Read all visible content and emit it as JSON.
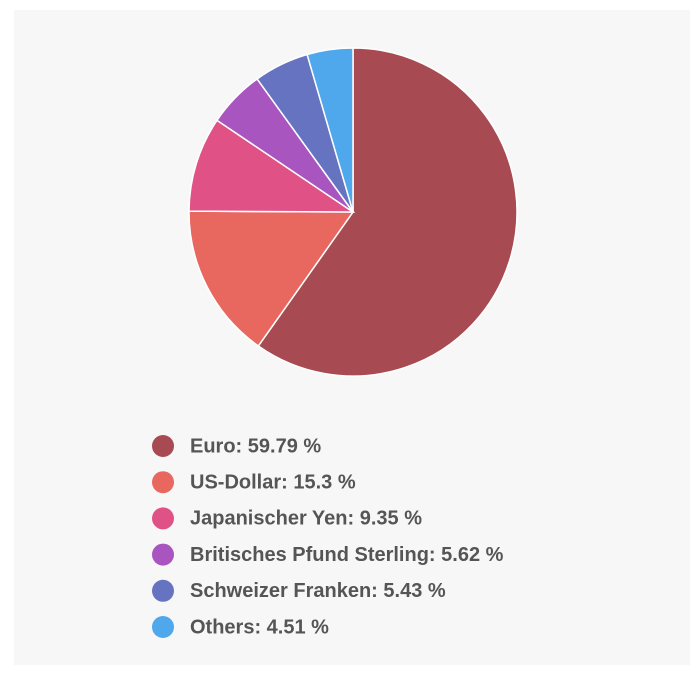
{
  "chart_data": {
    "type": "pie",
    "labels": [
      "Euro: 59.79 %",
      "US-Dollar: 15.3 %",
      "Japanischer Yen: 9.35 %",
      "Britisches Pfund Sterling: 5.62 %",
      "Schweizer Franken: 5.43 %",
      "Others: 4.51 %"
    ],
    "values": [
      59.79,
      15.3,
      9.35,
      5.62,
      5.43,
      4.51
    ],
    "colors": [
      "#a84a52",
      "#e8675f",
      "#e05286",
      "#a855c0",
      "#6673c1",
      "#4fa7ec"
    ]
  }
}
